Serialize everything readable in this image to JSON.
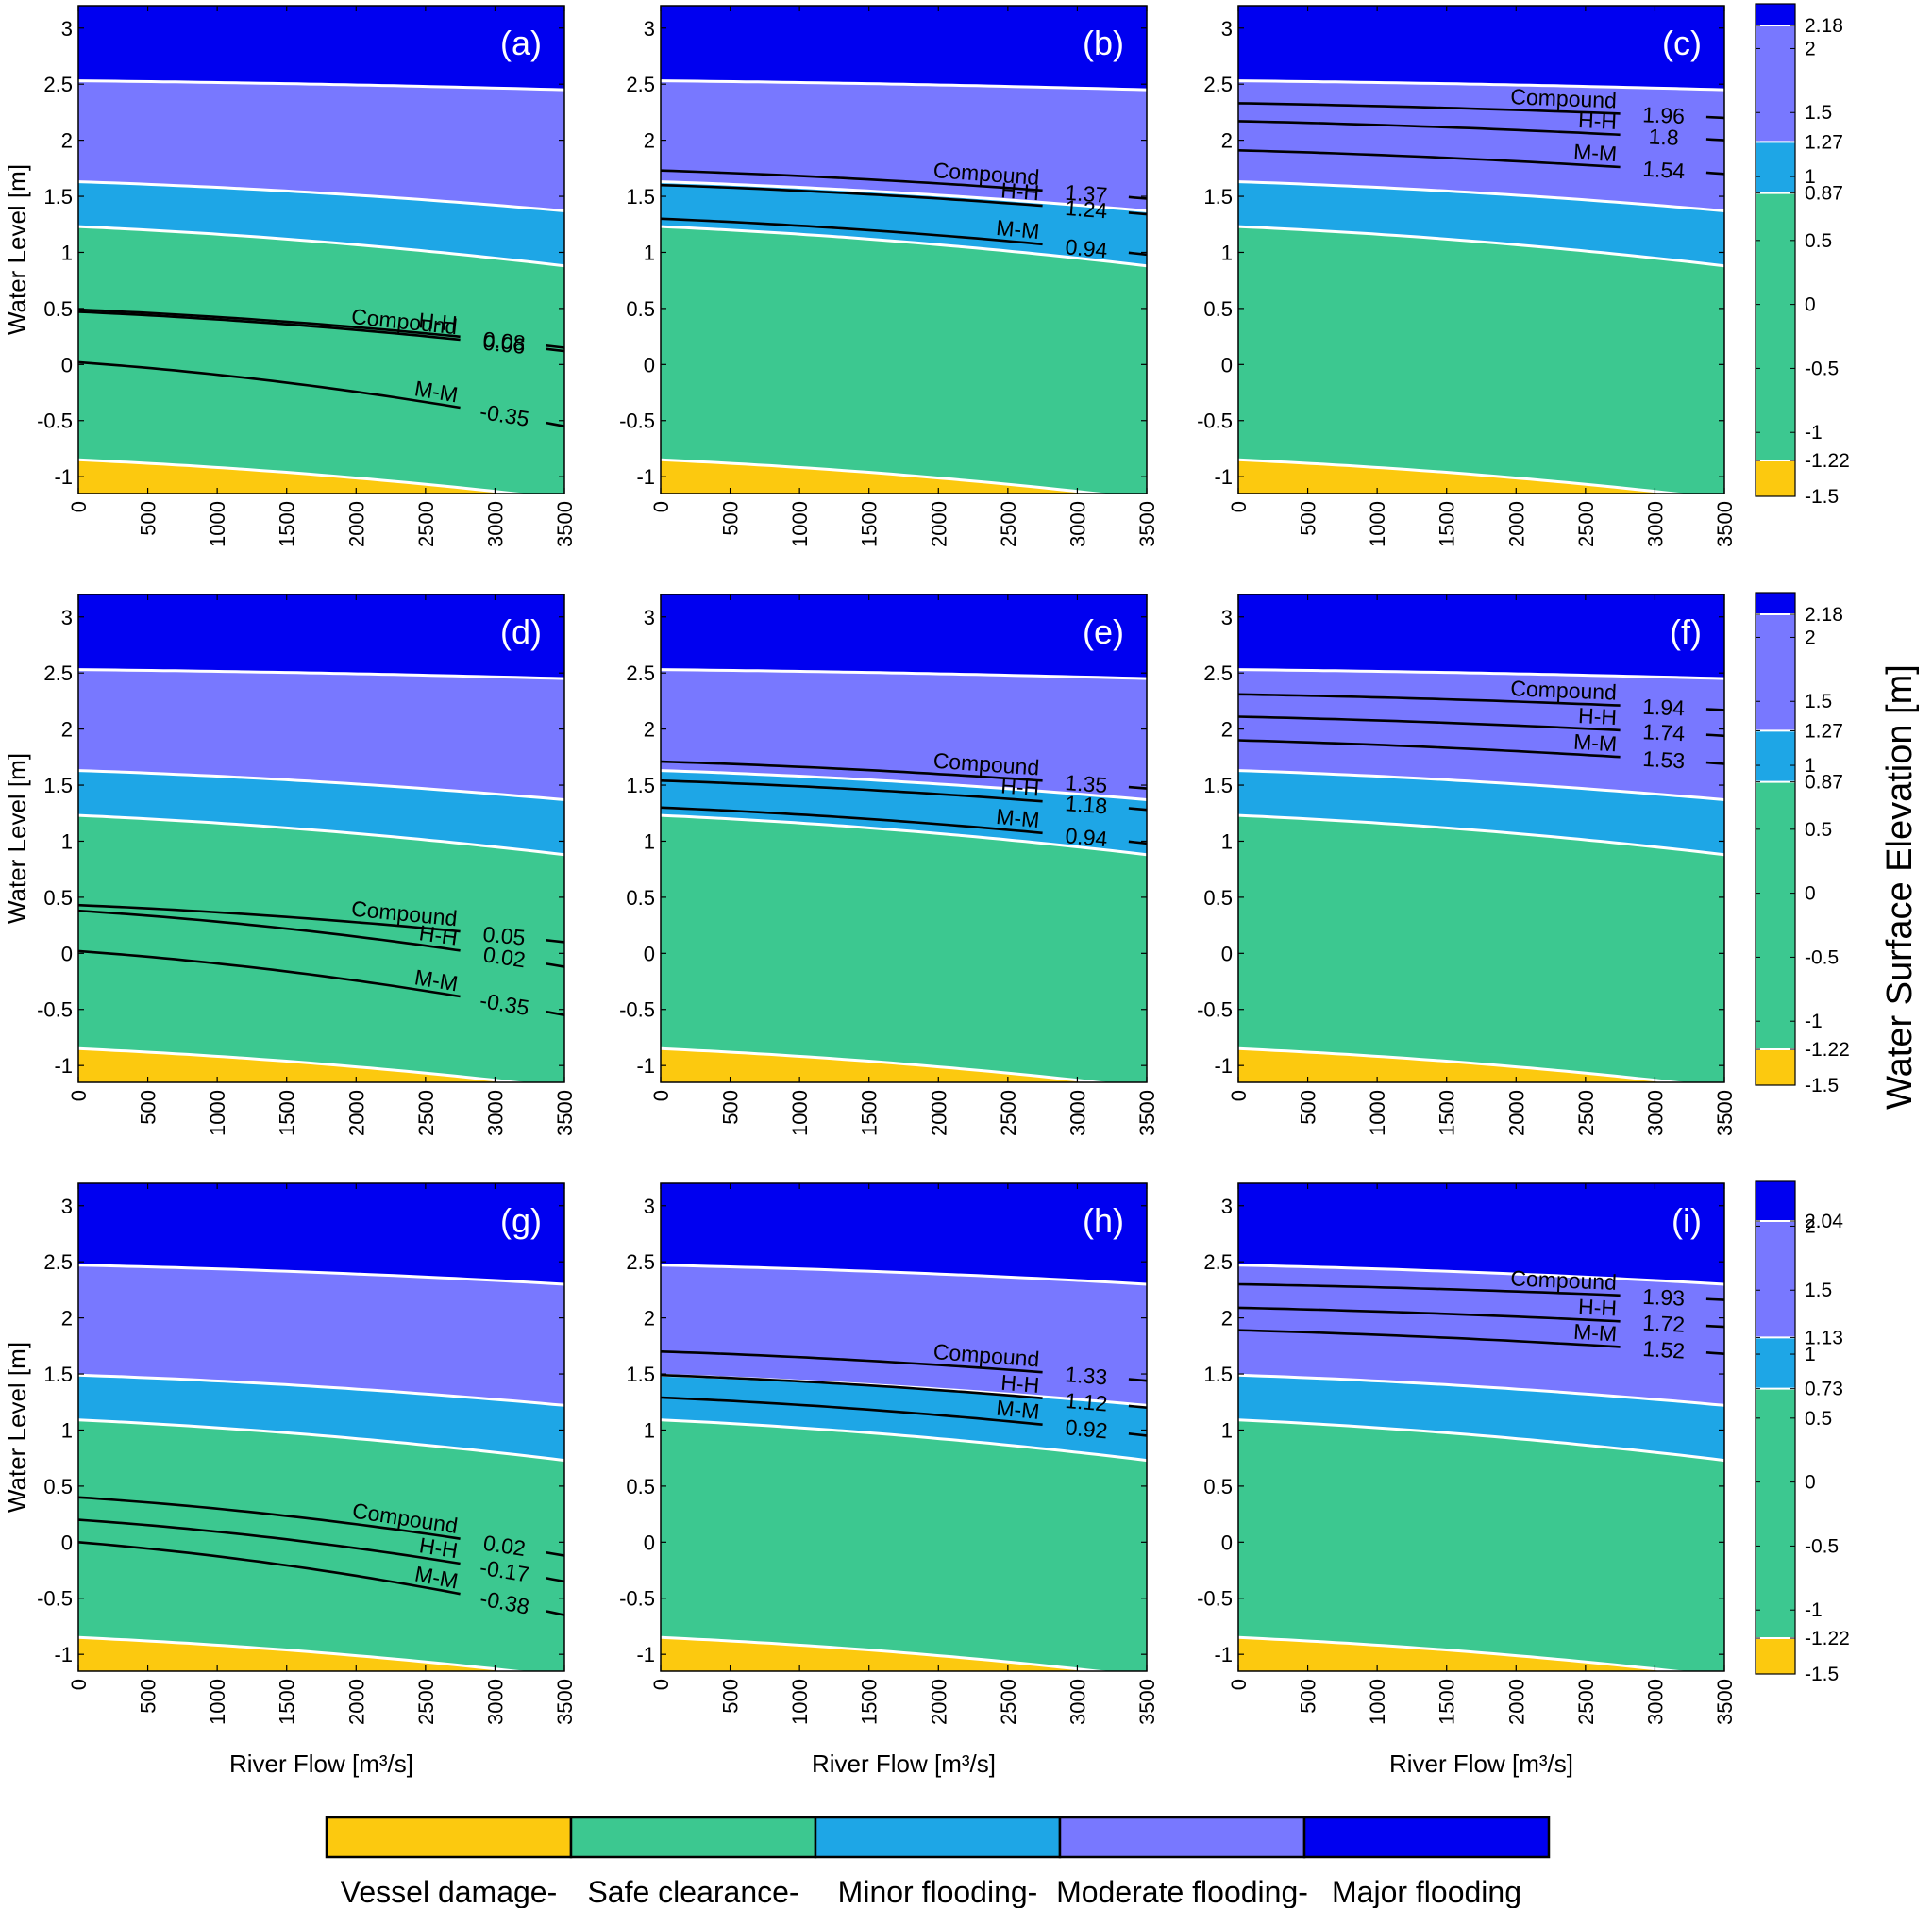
{
  "figure": {
    "colorbar_title": "Water Surface Elevation [m]",
    "xlabel": "River Flow [m³/s]",
    "ylabel": "Water Level [m]"
  },
  "chart_data": {
    "type": "contour",
    "xlim": [
      0,
      3500
    ],
    "ylim": [
      -1.15,
      3.2
    ],
    "x_ticks": [
      "0",
      "500",
      "1000",
      "1500",
      "2000",
      "2500",
      "3000",
      "3500"
    ],
    "y_ticks": [
      "-1",
      "-0.5",
      "0",
      "0.5",
      "1",
      "1.5",
      "2",
      "2.5",
      "3"
    ],
    "colors": {
      "vessel_damage": "#fcc90f",
      "safe_clearance": "#3cc890",
      "minor_flooding": "#1ea6e6",
      "moderate_flooding": "#7878ff",
      "major_flooding": "#0000f0"
    },
    "legend": [
      {
        "label": "Vessel damage-",
        "color": "#fcc90f"
      },
      {
        "label": "Safe clearance-",
        "color": "#3cc890"
      },
      {
        "label": "Minor flooding-",
        "color": "#1ea6e6"
      },
      {
        "label": "Moderate flooding-",
        "color": "#7878ff"
      },
      {
        "label": "Major flooding",
        "color": "#0000f0"
      }
    ],
    "colorbars": [
      {
        "row": 0,
        "range": [
          -1.5,
          2.35
        ],
        "thresholds": [
          -1.22,
          0.87,
          1.27,
          2.18
        ],
        "ticks": [
          "-1.5",
          "-1.22",
          "-1",
          "-0.5",
          "0",
          "0.5",
          "0.87",
          "1",
          "1.27",
          "1.5",
          "2",
          "2.18"
        ]
      },
      {
        "row": 1,
        "range": [
          -1.5,
          2.35
        ],
        "thresholds": [
          -1.22,
          0.87,
          1.27,
          2.18
        ],
        "ticks": [
          "-1.5",
          "-1.22",
          "-1",
          "-0.5",
          "0",
          "0.5",
          "0.87",
          "1",
          "1.27",
          "1.5",
          "2",
          "2.18"
        ]
      },
      {
        "row": 2,
        "range": [
          -1.5,
          2.35
        ],
        "thresholds": [
          -1.22,
          0.73,
          1.13,
          2.04
        ],
        "ticks": [
          "-1.5",
          "-1.22",
          "-1",
          "-0.5",
          "0",
          "0.5",
          "0.73",
          "1",
          "1.13",
          "1.5",
          "2",
          "2.04"
        ]
      }
    ],
    "panels": [
      {
        "label": "(a)",
        "row": 0,
        "col": 0,
        "boundaries": {
          "vd_sc": [
            -0.85,
            -1.2
          ],
          "sc_mi": [
            1.23,
            0.88
          ],
          "mi_mo": [
            1.63,
            1.37
          ],
          "mo_ma": [
            2.53,
            2.45
          ]
        },
        "contours": [
          {
            "name": "H-H",
            "value": "0.08",
            "y_start": 0.49,
            "y_end": 0.15
          },
          {
            "name": "Compound",
            "value": "0.06",
            "y_start": 0.47,
            "y_end": 0.12
          },
          {
            "name": "M-M",
            "value": "-0.35",
            "y_start": 0.02,
            "y_end": -0.55
          }
        ]
      },
      {
        "label": "(b)",
        "row": 0,
        "col": 1,
        "boundaries": {
          "vd_sc": [
            -0.85,
            -1.2
          ],
          "sc_mi": [
            1.23,
            0.88
          ],
          "mi_mo": [
            1.63,
            1.37
          ],
          "mo_ma": [
            2.53,
            2.45
          ]
        },
        "contours": [
          {
            "name": "Compound",
            "value": "1.37",
            "y_start": 1.73,
            "y_end": 1.48
          },
          {
            "name": "H-H",
            "value": "1.24",
            "y_start": 1.6,
            "y_end": 1.34
          },
          {
            "name": "M-M",
            "value": "0.94",
            "y_start": 1.3,
            "y_end": 0.98
          }
        ]
      },
      {
        "label": "(c)",
        "row": 0,
        "col": 2,
        "boundaries": {
          "vd_sc": [
            -0.85,
            -1.2
          ],
          "sc_mi": [
            1.23,
            0.88
          ],
          "mi_mo": [
            1.63,
            1.37
          ],
          "mo_ma": [
            2.53,
            2.45
          ]
        },
        "contours": [
          {
            "name": "Compound",
            "value": "1.96",
            "y_start": 2.33,
            "y_end": 2.2
          },
          {
            "name": "H-H",
            "value": "1.8",
            "y_start": 2.17,
            "y_end": 2.0
          },
          {
            "name": "M-M",
            "value": "1.54",
            "y_start": 1.91,
            "y_end": 1.7
          }
        ]
      },
      {
        "label": "(d)",
        "row": 1,
        "col": 0,
        "boundaries": {
          "vd_sc": [
            -0.85,
            -1.2
          ],
          "sc_mi": [
            1.23,
            0.88
          ],
          "mi_mo": [
            1.63,
            1.37
          ],
          "mo_ma": [
            2.53,
            2.45
          ]
        },
        "contours": [
          {
            "name": "Compound",
            "value": "0.05",
            "y_start": 0.43,
            "y_end": 0.1
          },
          {
            "name": "H-H",
            "value": "0.02",
            "y_start": 0.38,
            "y_end": -0.12
          },
          {
            "name": "M-M",
            "value": "-0.35",
            "y_start": 0.02,
            "y_end": -0.55
          }
        ]
      },
      {
        "label": "(e)",
        "row": 1,
        "col": 1,
        "boundaries": {
          "vd_sc": [
            -0.85,
            -1.2
          ],
          "sc_mi": [
            1.23,
            0.88
          ],
          "mi_mo": [
            1.63,
            1.37
          ],
          "mo_ma": [
            2.53,
            2.45
          ]
        },
        "contours": [
          {
            "name": "Compound",
            "value": "1.35",
            "y_start": 1.71,
            "y_end": 1.47
          },
          {
            "name": "H-H",
            "value": "1.18",
            "y_start": 1.54,
            "y_end": 1.28
          },
          {
            "name": "M-M",
            "value": "0.94",
            "y_start": 1.3,
            "y_end": 0.98
          }
        ]
      },
      {
        "label": "(f)",
        "row": 1,
        "col": 2,
        "boundaries": {
          "vd_sc": [
            -0.85,
            -1.2
          ],
          "sc_mi": [
            1.23,
            0.88
          ],
          "mi_mo": [
            1.63,
            1.37
          ],
          "mo_ma": [
            2.53,
            2.45
          ]
        },
        "contours": [
          {
            "name": "Compound",
            "value": "1.94",
            "y_start": 2.31,
            "y_end": 2.17
          },
          {
            "name": "H-H",
            "value": "1.74",
            "y_start": 2.11,
            "y_end": 1.94
          },
          {
            "name": "M-M",
            "value": "1.53",
            "y_start": 1.9,
            "y_end": 1.69
          }
        ]
      },
      {
        "label": "(g)",
        "row": 2,
        "col": 0,
        "boundaries": {
          "vd_sc": [
            -0.85,
            -1.2
          ],
          "sc_mi": [
            1.09,
            0.73
          ],
          "mi_mo": [
            1.49,
            1.22
          ],
          "mo_ma": [
            2.47,
            2.3
          ]
        },
        "contours": [
          {
            "name": "Compound",
            "value": "0.02",
            "y_start": 0.4,
            "y_end": -0.12
          },
          {
            "name": "H-H",
            "value": "-0.17",
            "y_start": 0.2,
            "y_end": -0.35
          },
          {
            "name": "M-M",
            "value": "-0.38",
            "y_start": 0.0,
            "y_end": -0.65
          }
        ]
      },
      {
        "label": "(h)",
        "row": 2,
        "col": 1,
        "boundaries": {
          "vd_sc": [
            -0.85,
            -1.2
          ],
          "sc_mi": [
            1.09,
            0.73
          ],
          "mi_mo": [
            1.49,
            1.22
          ],
          "mo_ma": [
            2.47,
            2.3
          ]
        },
        "contours": [
          {
            "name": "Compound",
            "value": "1.33",
            "y_start": 1.7,
            "y_end": 1.44
          },
          {
            "name": "H-H",
            "value": "1.12",
            "y_start": 1.49,
            "y_end": 1.2
          },
          {
            "name": "M-M",
            "value": "0.92",
            "y_start": 1.29,
            "y_end": 0.95
          }
        ]
      },
      {
        "label": "(i)",
        "row": 2,
        "col": 2,
        "boundaries": {
          "vd_sc": [
            -0.85,
            -1.2
          ],
          "sc_mi": [
            1.09,
            0.73
          ],
          "mi_mo": [
            1.49,
            1.22
          ],
          "mo_ma": [
            2.47,
            2.3
          ]
        },
        "contours": [
          {
            "name": "Compound",
            "value": "1.93",
            "y_start": 2.3,
            "y_end": 2.16
          },
          {
            "name": "H-H",
            "value": "1.72",
            "y_start": 2.09,
            "y_end": 1.92
          },
          {
            "name": "M-M",
            "value": "1.52",
            "y_start": 1.89,
            "y_end": 1.68
          }
        ]
      }
    ]
  }
}
